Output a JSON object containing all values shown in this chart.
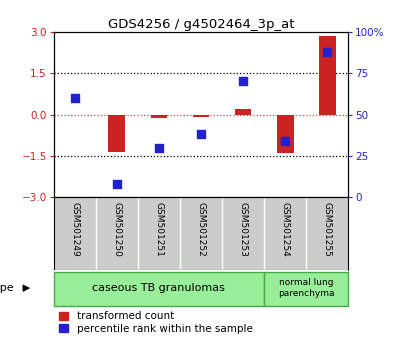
{
  "title": "GDS4256 / g4502464_3p_at",
  "samples": [
    "GSM501249",
    "GSM501250",
    "GSM501251",
    "GSM501252",
    "GSM501253",
    "GSM501254",
    "GSM501255"
  ],
  "transformed_count": [
    0.0,
    -1.35,
    -0.12,
    -0.08,
    0.2,
    -1.4,
    2.85
  ],
  "percentile_rank_pct": [
    60,
    8,
    30,
    38,
    70,
    34,
    88
  ],
  "ylim_left": [
    -3,
    3
  ],
  "ylim_right": [
    0,
    100
  ],
  "yticks_left": [
    -3,
    -1.5,
    0,
    1.5,
    3
  ],
  "yticks_right": [
    0,
    25,
    50,
    75,
    100
  ],
  "bar_color": "#cc2222",
  "dot_color": "#2222cc",
  "background_color": "#ffffff",
  "sample_bg_color": "#cccccc",
  "cell_type_bg_color": "#99ee99",
  "cell_type_edge_color": "#44aa44",
  "left_axis_color": "#cc2222",
  "right_axis_color": "#2222cc",
  "bar_width": 0.4,
  "dot_size": 35
}
